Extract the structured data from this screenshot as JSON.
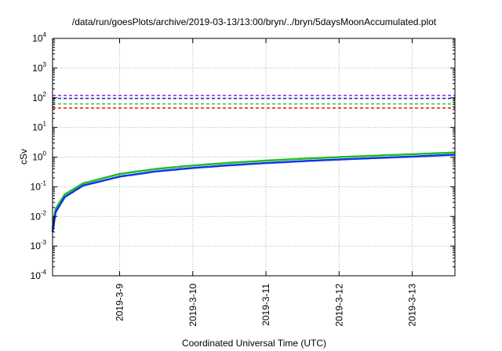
{
  "chart_data": {
    "type": "line",
    "title": "/data/run/goesPlots/archive/2019-03-13/13:00/bryn/../bryn/5daysMoonAccumulated.plot",
    "xlabel": "Coordinated Universal Time (UTC)",
    "ylabel": "cSv",
    "y_scale": "log",
    "ylim": [
      0.0001,
      10000
    ],
    "y_ticks": [
      {
        "base": "10",
        "exp": "-4",
        "value": 0.0001
      },
      {
        "base": "10",
        "exp": "-3",
        "value": 0.001
      },
      {
        "base": "10",
        "exp": "-2",
        "value": 0.01
      },
      {
        "base": "10",
        "exp": "-1",
        "value": 0.1
      },
      {
        "base": "10",
        "exp": "0",
        "value": 1
      },
      {
        "base": "10",
        "exp": "1",
        "value": 10
      },
      {
        "base": "10",
        "exp": "2",
        "value": 100
      },
      {
        "base": "10",
        "exp": "3",
        "value": 1000
      },
      {
        "base": "10",
        "exp": "4",
        "value": 10000
      }
    ],
    "xlim": [
      "2019-03-08T02:00",
      "2019-03-13T14:00"
    ],
    "x_ticks": [
      {
        "label": "2019-3-9",
        "value": "2019-03-09T00:00"
      },
      {
        "label": "2019-3-10",
        "value": "2019-03-10T00:00"
      },
      {
        "label": "2019-3-11",
        "value": "2019-03-11T00:00"
      },
      {
        "label": "2019-3-12",
        "value": "2019-03-12T00:00"
      },
      {
        "label": "2019-3-13",
        "value": "2019-03-13T00:00"
      }
    ],
    "grid": true,
    "thresholds": [
      {
        "y": 120,
        "color": "#8b2be2",
        "style": "dashed"
      },
      {
        "y": 95,
        "color": "#2222cc",
        "style": "dashed"
      },
      {
        "y": 62,
        "color": "#22cc22",
        "style": "dashed"
      },
      {
        "y": 45,
        "color": "#ee1111",
        "style": "dashed"
      }
    ],
    "series": [
      {
        "color": "#22bb22",
        "x": [
          "2019-03-08T02:00",
          "2019-03-08T03:00",
          "2019-03-08T06:00",
          "2019-03-08T12:00",
          "2019-03-09T00:00",
          "2019-03-09T12:00",
          "2019-03-10T00:00",
          "2019-03-10T12:00",
          "2019-03-11T00:00",
          "2019-03-11T12:00",
          "2019-03-12T00:00",
          "2019-03-12T12:00",
          "2019-03-13T00:00",
          "2019-03-13T14:00"
        ],
        "y": [
          0.004,
          0.018,
          0.055,
          0.13,
          0.27,
          0.4,
          0.52,
          0.64,
          0.76,
          0.88,
          1.0,
          1.12,
          1.25,
          1.42
        ]
      },
      {
        "color": "#1133ee",
        "x": [
          "2019-03-08T02:00",
          "2019-03-08T03:00",
          "2019-03-08T06:00",
          "2019-03-08T12:00",
          "2019-03-09T00:00",
          "2019-03-09T12:00",
          "2019-03-10T00:00",
          "2019-03-10T12:00",
          "2019-03-11T00:00",
          "2019-03-11T12:00",
          "2019-03-12T00:00",
          "2019-03-12T12:00",
          "2019-03-13T00:00",
          "2019-03-13T14:00"
        ],
        "y": [
          0.003,
          0.014,
          0.045,
          0.11,
          0.22,
          0.33,
          0.43,
          0.53,
          0.63,
          0.73,
          0.83,
          0.93,
          1.04,
          1.2
        ]
      }
    ]
  }
}
